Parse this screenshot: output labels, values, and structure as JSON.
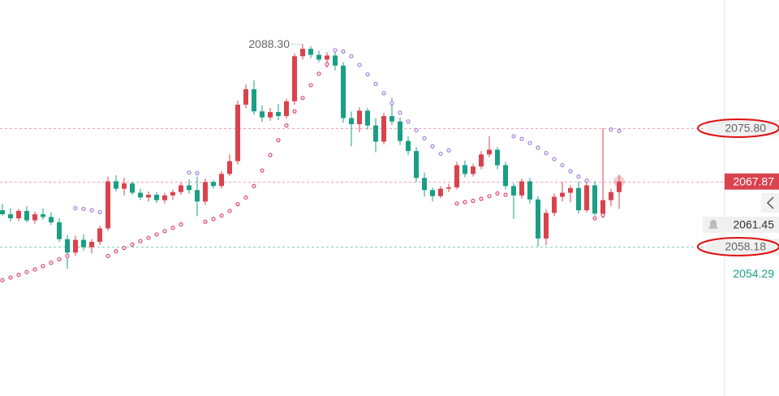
{
  "chart_data": {
    "type": "candlestick",
    "ylim": [
      2035.98,
      2094.86
    ],
    "up_color": "#d9434e",
    "down_color": "#1a9f84",
    "sar_below_color": "#e0457b",
    "sar_above_color": "#a37fe0",
    "open": [
      2063.6,
      2063.0,
      2062.4,
      2063.5,
      2062.1,
      2063.0,
      2062.6,
      2061.8,
      2059.3,
      2057.3,
      2059.2,
      2058.1,
      2058.9,
      2060.9,
      2067.9,
      2066.8,
      2067.6,
      2066.2,
      2065.5,
      2065.9,
      2065.1,
      2065.8,
      2066.3,
      2067.3,
      2066.6,
      2064.9,
      2067.8,
      2067.2,
      2069.0,
      2070.9,
      2079.3,
      2081.6,
      2078.3,
      2077.4,
      2078.2,
      2077.6,
      2079.8,
      2086.5,
      2087.6,
      2086.7,
      2086.0,
      2086.6,
      2085.1,
      2077.3,
      2076.4,
      2078.4,
      2076.2,
      2073.8,
      2077.6,
      2076.8,
      2073.9,
      2072.4,
      2068.4,
      2066.6,
      2065.7,
      2066.8,
      2067.0,
      2070.3,
      2069.0,
      2070.1,
      2071.9,
      2072.6,
      2070.3,
      2067.2,
      2065.8,
      2067.9,
      2065.2,
      2059.4,
      2063.2,
      2065.6,
      2066.2,
      2066.9,
      2063.6,
      2067.3,
      2063.1,
      2065.1,
      2066.3
    ],
    "high": [
      2064.5,
      2063.9,
      2063.8,
      2064.2,
      2063.4,
      2063.9,
      2063.3,
      2062.4,
      2059.9,
      2059.8,
      2060.0,
      2059.3,
      2061.3,
      2068.6,
      2068.8,
      2068.4,
      2067.9,
      2066.8,
      2066.4,
      2066.3,
      2066.2,
      2066.7,
      2067.7,
      2068.2,
      2068.6,
      2068.3,
      2068.1,
      2069.4,
      2071.9,
      2079.9,
      2082.3,
      2082.9,
      2079.2,
      2078.8,
      2079.4,
      2080.2,
      2086.9,
      2088.3,
      2088.0,
      2087.3,
      2087.1,
      2087.5,
      2085.6,
      2078.3,
      2078.9,
      2078.8,
      2077.3,
      2078.1,
      2080.3,
      2077.4,
      2074.6,
      2073.0,
      2069.2,
      2067.0,
      2067.2,
      2067.5,
      2070.8,
      2071.0,
      2070.5,
      2072.4,
      2074.6,
      2073.0,
      2070.8,
      2067.6,
      2068.3,
      2068.4,
      2065.7,
      2063.7,
      2066.1,
      2067.8,
      2067.3,
      2067.9,
      2067.7,
      2067.9,
      2075.8,
      2066.8,
      2068.9
    ],
    "low": [
      2062.8,
      2061.9,
      2062.0,
      2061.8,
      2061.6,
      2062.2,
      2061.4,
      2058.9,
      2054.9,
      2056.8,
      2057.6,
      2057.2,
      2058.4,
      2060.5,
      2066.4,
      2065.8,
      2065.9,
      2065.1,
      2064.9,
      2064.7,
      2064.6,
      2065.2,
      2065.9,
      2066.1,
      2062.7,
      2064.4,
      2066.8,
      2066.8,
      2068.7,
      2070.4,
      2078.8,
      2077.8,
      2076.7,
      2076.9,
      2077.0,
      2077.2,
      2079.3,
      2086.0,
      2086.2,
      2085.6,
      2084.8,
      2084.4,
      2076.6,
      2073.1,
      2075.2,
      2075.6,
      2072.2,
      2073.4,
      2076.3,
      2073.3,
      2071.8,
      2067.8,
      2065.6,
      2064.9,
      2065.4,
      2066.3,
      2066.7,
      2068.5,
      2068.6,
      2069.7,
      2071.5,
      2069.7,
      2066.7,
      2062.3,
      2065.3,
      2064.6,
      2058.2,
      2058.4,
      2062.7,
      2064.9,
      2064.8,
      2063.1,
      2063.3,
      2062.8,
      2062.4,
      2064.2,
      2063.8
    ],
    "close": [
      2063.0,
      2062.4,
      2063.5,
      2062.1,
      2063.0,
      2062.6,
      2061.8,
      2059.3,
      2057.3,
      2059.2,
      2058.1,
      2058.9,
      2060.9,
      2067.9,
      2066.8,
      2067.6,
      2066.2,
      2065.5,
      2065.9,
      2065.1,
      2065.8,
      2066.3,
      2067.3,
      2066.6,
      2064.9,
      2067.8,
      2067.2,
      2069.0,
      2070.9,
      2079.3,
      2081.6,
      2078.3,
      2077.4,
      2078.2,
      2077.6,
      2079.8,
      2086.5,
      2087.6,
      2086.7,
      2086.0,
      2086.6,
      2085.1,
      2077.3,
      2076.4,
      2078.4,
      2076.2,
      2073.8,
      2077.6,
      2076.8,
      2073.9,
      2072.4,
      2068.4,
      2066.6,
      2065.7,
      2066.8,
      2067.0,
      2070.3,
      2069.0,
      2070.1,
      2071.9,
      2072.6,
      2070.3,
      2067.2,
      2065.8,
      2067.9,
      2065.2,
      2059.4,
      2063.2,
      2065.6,
      2066.2,
      2066.9,
      2063.6,
      2067.3,
      2063.1,
      2065.1,
      2066.3,
      2067.87
    ],
    "sar": [
      2053.2,
      2053.6,
      2054.0,
      2054.4,
      2054.8,
      2055.3,
      2055.8,
      2056.3,
      2056.8,
      2063.9,
      2063.8,
      2063.6,
      2063.3,
      2056.8,
      2057.5,
      2058.0,
      2058.5,
      2059.0,
      2059.5,
      2060.0,
      2060.5,
      2061.0,
      2061.5,
      2069.2,
      2069.1,
      2061.9,
      2062.3,
      2062.8,
      2063.5,
      2064.5,
      2065.5,
      2067.2,
      2069.5,
      2071.8,
      2074.0,
      2076.2,
      2078.3,
      2080.3,
      2082.2,
      2083.9,
      2085.3,
      2087.4,
      2087.2,
      2086.5,
      2085.2,
      2083.8,
      2082.4,
      2081.0,
      2079.5,
      2078.1,
      2076.8,
      2075.5,
      2074.3,
      2073.1,
      2072.0,
      2072.5,
      2064.6,
      2064.8,
      2065.0,
      2065.3,
      2065.7,
      2066.1,
      2065.9,
      2074.6,
      2074.2,
      2073.6,
      2072.9,
      2072.1,
      2071.2,
      2070.3,
      2069.4,
      2068.6,
      2068.0,
      2062.4,
      2062.9,
      2075.6,
      2075.4
    ],
    "high_annotation": {
      "value": 2088.3,
      "label": "2088.30"
    },
    "levels": [
      {
        "value": 2075.8,
        "label": "2075.80",
        "kind": "circled",
        "line_color": "#f0a0b8"
      },
      {
        "value": 2067.87,
        "label": "2067.87",
        "kind": "current",
        "line_color": "#f0a0b8"
      },
      {
        "value": 2061.45,
        "label": "2061.45",
        "kind": "alert"
      },
      {
        "value": 2058.18,
        "label": "2058.18",
        "kind": "circled",
        "line_color": "#7fd4b4"
      },
      {
        "value": 2054.29,
        "label": "2054.29",
        "kind": "plain"
      }
    ]
  }
}
